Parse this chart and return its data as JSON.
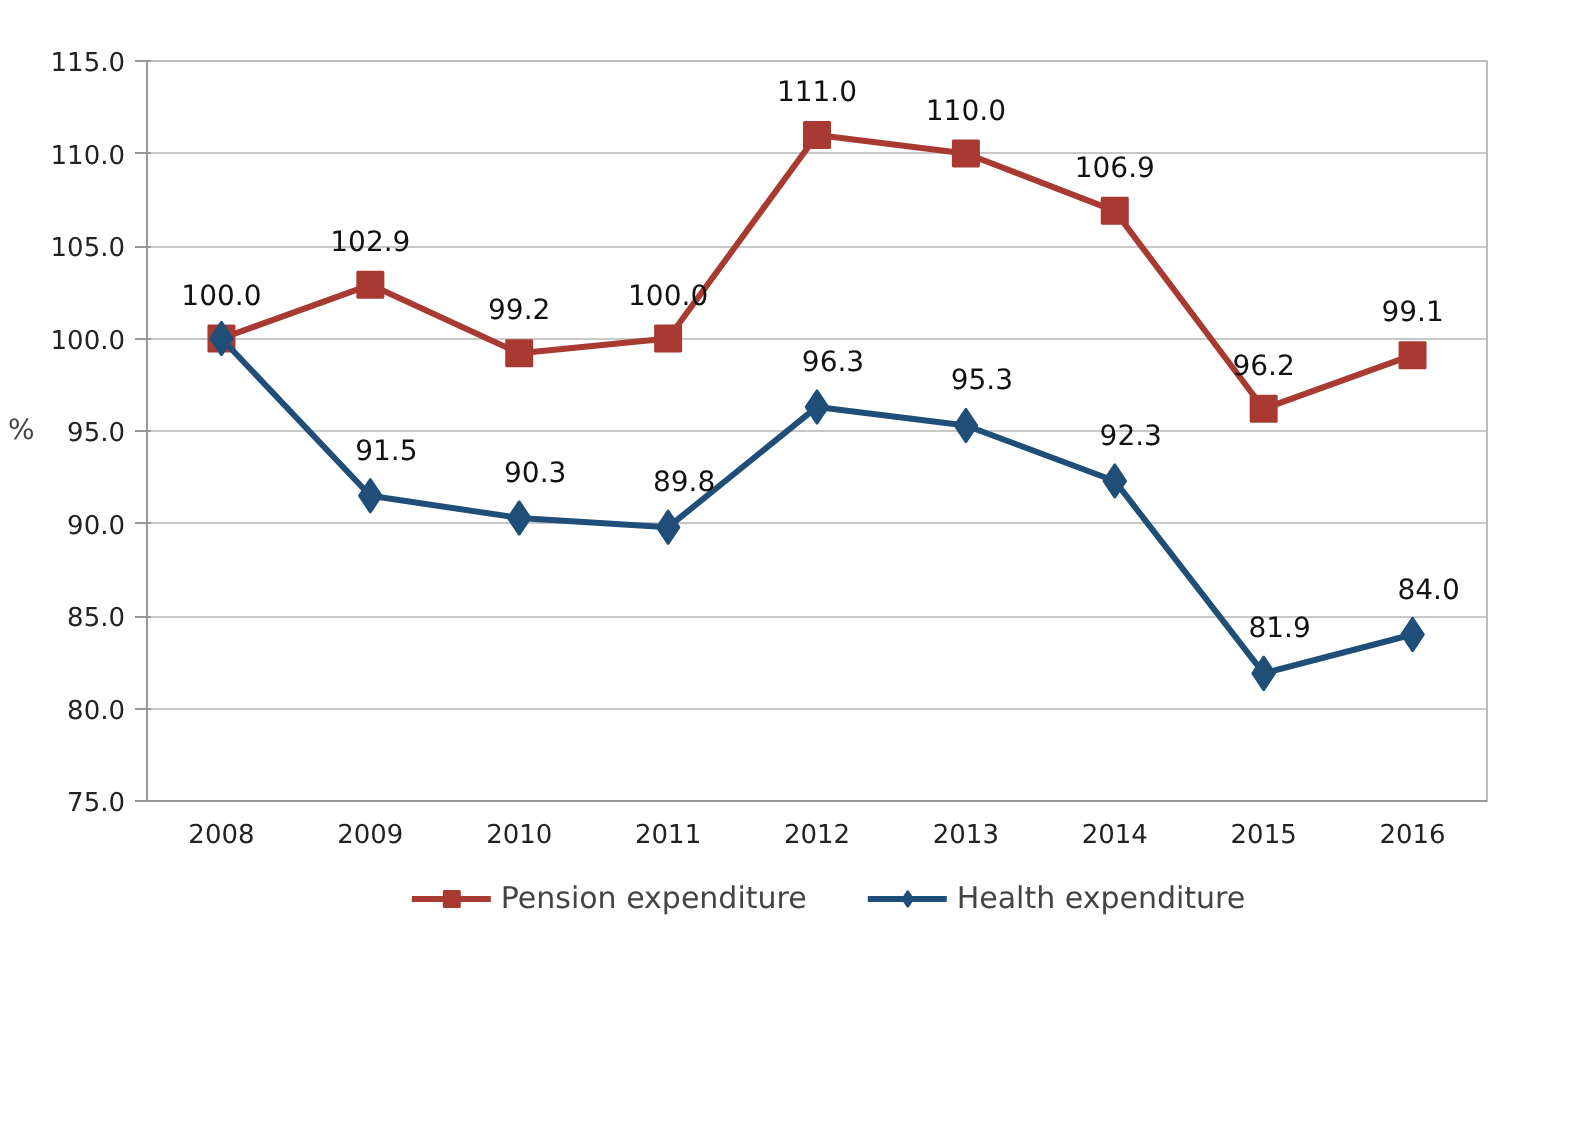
{
  "chart_data": {
    "type": "line",
    "ylabel": "%",
    "categories": [
      "2008",
      "2009",
      "2010",
      "2011",
      "2012",
      "2013",
      "2014",
      "2015",
      "2016"
    ],
    "series": [
      {
        "name": "Pension expenditure",
        "color": "#a83a32",
        "marker": "square",
        "values": [
          100.0,
          102.9,
          99.2,
          100.0,
          111.0,
          110.0,
          106.9,
          96.2,
          99.1
        ],
        "value_labels": [
          "100.0",
          "102.9",
          "99.2",
          "100.0",
          "111.0",
          "110.0",
          "106.9",
          "96.2",
          "99.1"
        ]
      },
      {
        "name": "Health expenditure",
        "color": "#1f4e79",
        "marker": "diamond",
        "values": [
          100.0,
          91.5,
          90.3,
          89.8,
          96.3,
          95.3,
          92.3,
          81.9,
          84.0
        ],
        "value_labels": [
          null,
          "91.5",
          "90.3",
          "89.8",
          "96.3",
          "95.3",
          "92.3",
          "81.9",
          "84.0"
        ]
      }
    ],
    "ylim": [
      75,
      115
    ],
    "yticks": [
      {
        "value": 75,
        "label": "75.0"
      },
      {
        "value": 80,
        "label": "80.0"
      },
      {
        "value": 85,
        "label": "85.0"
      },
      {
        "value": 90,
        "label": "90.0"
      },
      {
        "value": 95,
        "label": "95.0"
      },
      {
        "value": 100,
        "label": "100.0"
      },
      {
        "value": 105,
        "label": "105.0"
      },
      {
        "value": 110,
        "label": "110.0"
      },
      {
        "value": 115,
        "label": "115.0"
      }
    ],
    "grid": "y",
    "legend": "bottom",
    "line_style": "solid"
  }
}
